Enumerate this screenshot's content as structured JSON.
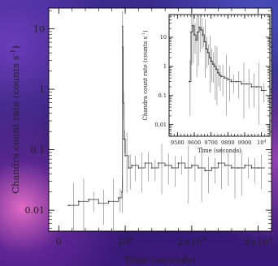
{
  "chart_data": [
    {
      "type": "line",
      "title": "",
      "xlabel": "Time (seconds)",
      "ylabel": "Chandra count rate (counts s",
      "ylabel_sup": "-1",
      "ylabel_close": ")",
      "yscale": "log",
      "xlim": [
        -1500,
        32000
      ],
      "ylim": [
        0.0045,
        22
      ],
      "x_ticks": [
        {
          "value": 0,
          "label": "0"
        },
        {
          "value": 10000,
          "label": "10",
          "sup": "4"
        },
        {
          "value": 20000,
          "label": "2×10",
          "sup": "4"
        },
        {
          "value": 30000,
          "label": "3×10",
          "sup": "4"
        }
      ],
      "y_ticks": [
        {
          "value": 0.01,
          "label": "0.01"
        },
        {
          "value": 0.1,
          "label": "0.1"
        },
        {
          "value": 1,
          "label": "1"
        },
        {
          "value": 10,
          "label": "10"
        }
      ],
      "grid": false,
      "series": [
        {
          "x": [
            1500,
            3000,
            4500,
            6000,
            7500,
            9000,
            9500,
            9590,
            9620,
            9700,
            9800,
            10000,
            10500,
            11000,
            12000,
            13000,
            14000,
            15000,
            16000,
            17000,
            18000,
            19000,
            20000,
            21000,
            22000,
            23000,
            24000,
            25000,
            26000,
            27000,
            28000,
            29000,
            30000
          ],
          "y": [
            0.012,
            0.014,
            0.015,
            0.013,
            0.014,
            0.016,
            0.02,
            11,
            5,
            0.6,
            0.15,
            0.08,
            0.05,
            0.055,
            0.05,
            0.06,
            0.05,
            0.06,
            0.055,
            0.05,
            0.06,
            0.05,
            0.055,
            0.05,
            0.045,
            0.05,
            0.06,
            0.055,
            0.05,
            0.05,
            0.055,
            0.05,
            0.05
          ]
        }
      ]
    },
    {
      "type": "line",
      "title": "",
      "xlabel": "Time (seconds)",
      "ylabel": "Chandra count rate (counts s",
      "ylabel_sup": "-1",
      "ylabel_close": ")",
      "yscale": "log",
      "xlim": [
        9450,
        10050
      ],
      "ylim": [
        0.004,
        60
      ],
      "x_ticks": [
        {
          "value": 9500,
          "label": "9500"
        },
        {
          "value": 9600,
          "label": "9600"
        },
        {
          "value": 9700,
          "label": "9700"
        },
        {
          "value": 9800,
          "label": "9800"
        },
        {
          "value": 9900,
          "label": "9900"
        },
        {
          "value": 10000,
          "label": "10",
          "sup": "4"
        }
      ],
      "y_ticks": [
        {
          "value": 0.01,
          "label": "0.01"
        },
        {
          "value": 0.1,
          "label": "0.1"
        },
        {
          "value": 1,
          "label": "1"
        },
        {
          "value": 10,
          "label": "10"
        }
      ],
      "grid": false,
      "series": [
        {
          "x": [
            9570,
            9580,
            9590,
            9600,
            9610,
            9620,
            9630,
            9640,
            9650,
            9660,
            9670,
            9680,
            9690,
            9700,
            9710,
            9720,
            9730,
            9740,
            9750,
            9760,
            9780,
            9800,
            9820,
            9850,
            9880,
            9910,
            9940,
            9970,
            10000
          ],
          "y": [
            0.3,
            15,
            25,
            12,
            8,
            15,
            22,
            18,
            12,
            7,
            4,
            3,
            2,
            1.5,
            1.2,
            1.0,
            0.8,
            0.6,
            0.5,
            0.45,
            0.4,
            0.35,
            0.3,
            0.3,
            0.25,
            0.25,
            0.2,
            0.2,
            0.15
          ]
        }
      ]
    }
  ]
}
